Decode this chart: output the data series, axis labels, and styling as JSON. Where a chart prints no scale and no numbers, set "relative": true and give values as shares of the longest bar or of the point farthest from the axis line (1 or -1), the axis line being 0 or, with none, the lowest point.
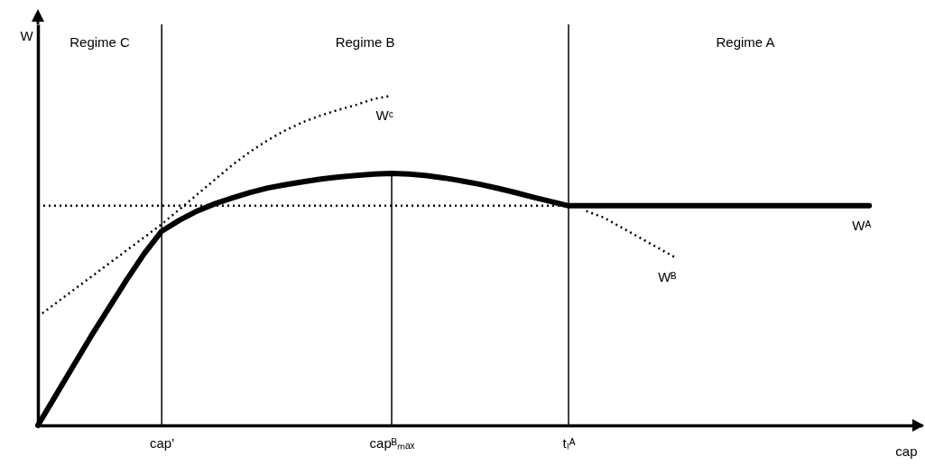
{
  "chart_data": {
    "type": "line",
    "relative": true,
    "xlabel": "cap",
    "ylabel": "W",
    "grid": false,
    "categories": [
      null,
      null,
      null,
      null,
      null,
      null,
      null,
      "cap’",
      null,
      null,
      null,
      null,
      null,
      null,
      null,
      null,
      null,
      null,
      null,
      null,
      "capᴮₘₐₓ",
      null,
      null,
      null,
      null,
      null,
      null,
      null,
      null,
      null,
      "tₗᴬ",
      null,
      null,
      null,
      null,
      null,
      null,
      null,
      null,
      null,
      null,
      null,
      null,
      null,
      null,
      null,
      null,
      null,
      null,
      null,
      null
    ],
    "series": [
      {
        "name": "Wᴬ",
        "color": "#000000",
        "line_style": "solid",
        "values": [
          0,
          0.09,
          0.18,
          0.27,
          0.355,
          0.44,
          0.52,
          0.589,
          0.622,
          0.65,
          0.672,
          0.69,
          0.706,
          0.72,
          0.73,
          0.739,
          0.747,
          0.753,
          0.758,
          0.762,
          0.764,
          0.762,
          0.757,
          0.75,
          0.741,
          0.731,
          0.719,
          0.706,
          0.692,
          0.679,
          0.666,
          0.666,
          0.666,
          0.666,
          0.666,
          0.666,
          0.666,
          0.666,
          0.666,
          0.666,
          0.666,
          0.666,
          0.666,
          0.666,
          0.666,
          0.666,
          0.666,
          0.666,
          null,
          null,
          null
        ]
      },
      {
        "name": "Wᶜ",
        "color": "#000000",
        "line_style": "dotted",
        "values": [
          0.33,
          0.37,
          0.41,
          0.45,
          0.49,
          0.53,
          0.57,
          0.61,
          0.655,
          0.7,
          0.745,
          0.79,
          0.83,
          0.865,
          0.895,
          0.92,
          0.94,
          0.957,
          0.972,
          0.99,
          1,
          null,
          null,
          null,
          null,
          null,
          null,
          null,
          null,
          null,
          null,
          null,
          null,
          null,
          null,
          null,
          null,
          null,
          null,
          null,
          null,
          null,
          null,
          null,
          null,
          null,
          null,
          null,
          null,
          null,
          null
        ]
      },
      {
        "name": "Wᴮ",
        "color": "#000000",
        "line_style": "dotted",
        "values": [
          null,
          null,
          null,
          null,
          null,
          null,
          null,
          null,
          null,
          null,
          null,
          null,
          null,
          null,
          null,
          null,
          null,
          null,
          null,
          null,
          null,
          null,
          null,
          null,
          null,
          null,
          null,
          null,
          null,
          null,
          null,
          0.65,
          0.63,
          0.6,
          0.57,
          0.54,
          0.51,
          null,
          null,
          null,
          null,
          null,
          null,
          null,
          null,
          null,
          null,
          null,
          null,
          null,
          null
        ]
      },
      {
        "color": "#000000",
        "line_style": "dotted",
        "values": [
          0.666,
          0.666,
          0.666,
          0.666,
          0.666,
          0.666,
          0.666,
          0.666,
          0.666,
          0.666,
          0.666,
          0.666,
          0.666,
          0.666,
          0.666,
          0.666,
          0.666,
          0.666,
          0.666,
          0.666,
          0.666,
          0.666,
          0.666,
          0.666,
          0.666,
          0.666,
          0.666,
          0.666,
          0.666,
          0.666,
          0.666,
          null,
          null,
          null,
          null,
          null,
          null,
          null,
          null,
          null,
          null,
          null,
          null,
          null,
          null,
          null,
          null,
          null,
          null,
          null,
          null
        ]
      },
      {
        "type": "bar",
        "color": "#000000",
        "values": [
          null,
          null,
          null,
          null,
          null,
          null,
          null,
          null,
          null,
          null,
          null,
          null,
          null,
          null,
          null,
          null,
          null,
          null,
          null,
          null,
          0.764,
          null,
          null,
          null,
          null,
          null,
          null,
          null,
          null,
          null,
          null,
          null,
          null,
          null,
          null,
          null,
          null,
          null,
          null,
          null,
          null,
          null,
          null,
          null,
          null,
          null,
          null,
          null,
          null,
          null,
          null
        ]
      }
    ],
    "ref_lines": [
      {
        "axis": "x",
        "value": "cap’",
        "color": "#000000"
      },
      {
        "axis": "x",
        "value": "tₗᴬ",
        "color": "#000000"
      }
    ],
    "annotations": [
      "Regime C",
      "Regime B",
      "Regime A"
    ]
  }
}
